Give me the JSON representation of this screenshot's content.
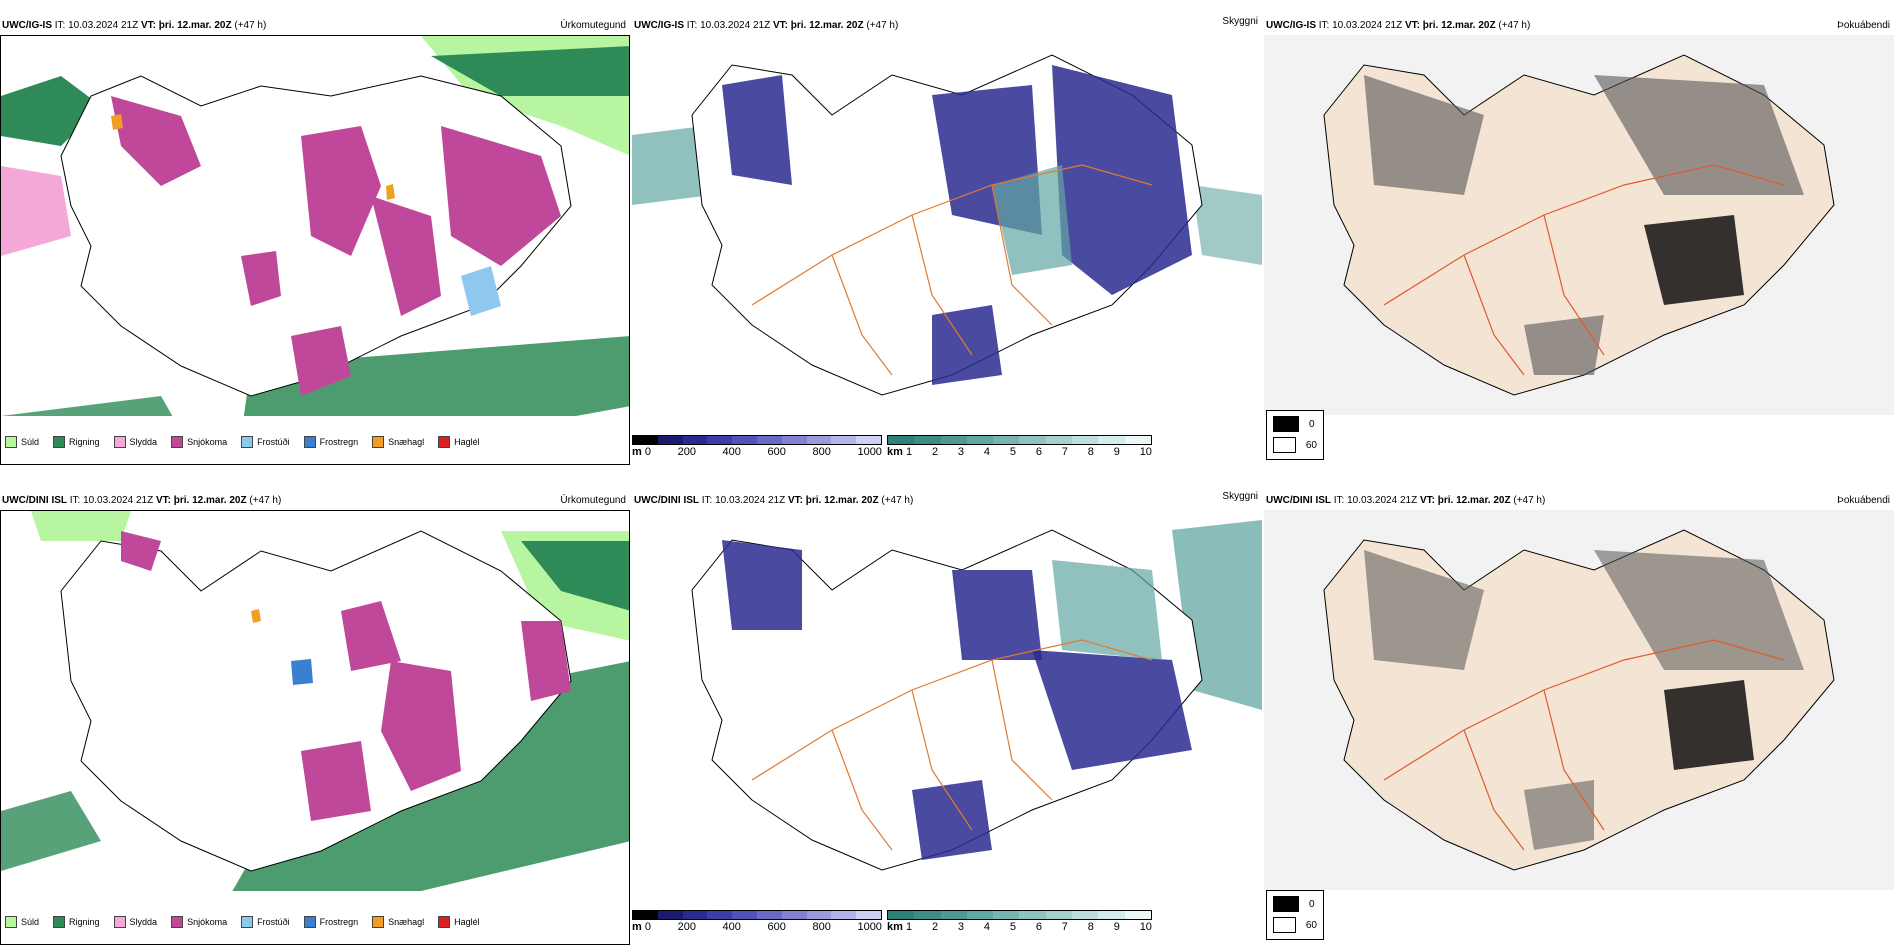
{
  "run": {
    "init_label": "IT:",
    "init_time": "10.03.2024 21Z",
    "valid_label": "VT:",
    "valid_time": "þri. 12.mar. 20Z",
    "lead": "(+47 h)"
  },
  "rows": [
    {
      "model": "UWC/IG-IS",
      "panels": [
        "Úrkomutegund",
        "Skyggni",
        "Þokuábendi"
      ]
    },
    {
      "model": "UWC/DINI ISL",
      "panels": [
        "Úrkomutegund",
        "Skyggni",
        "Þokuábendi"
      ]
    }
  ],
  "precip_legend": [
    {
      "label": "Súld",
      "color": "#b8f5a0"
    },
    {
      "label": "Rigning",
      "color": "#2e8b57"
    },
    {
      "label": "Slydda",
      "color": "#f4a8d8"
    },
    {
      "label": "Snjókoma",
      "color": "#c0489a"
    },
    {
      "label": "Frostúði",
      "color": "#8ec8f0"
    },
    {
      "label": "Frostregn",
      "color": "#3a7fd0"
    },
    {
      "label": "Snæhagl",
      "color": "#f0a020"
    },
    {
      "label": "Haglél",
      "color": "#e02020"
    }
  ],
  "height_bar": {
    "unit": "m",
    "ticks": [
      "0",
      "200",
      "400",
      "600",
      "800",
      "1000"
    ],
    "colors": [
      "#000000",
      "#1a1a6e",
      "#2a2a90",
      "#3c3caa",
      "#5252b8",
      "#6a6ac4",
      "#8282d0",
      "#9a9adc",
      "#b4b4e8",
      "#d0d0f4"
    ]
  },
  "vis_bar": {
    "unit": "km",
    "ticks": [
      "1",
      "2",
      "3",
      "4",
      "5",
      "6",
      "7",
      "8",
      "9",
      "10"
    ],
    "colors": [
      "#2f7f7a",
      "#3f8c87",
      "#4f9994",
      "#63a7a2",
      "#78b5b0",
      "#8ec3bf",
      "#a5d1cd",
      "#bcdfdc",
      "#d4ecea",
      "#ecf8f7"
    ]
  },
  "fog_key": {
    "items": [
      {
        "label": "0",
        "color": "#000000"
      },
      {
        "label": "60",
        "color": "#ffffff"
      }
    ]
  },
  "colors": {
    "island_fill": "#f4e4d4",
    "roads": "#e07a30",
    "coast": "#000000",
    "snow": "#c0489a",
    "rain": "#2e8b57",
    "drizzle": "#b8f5a0",
    "vis_dark": "#2a2a90",
    "vis_teal": "#63a7a2"
  }
}
